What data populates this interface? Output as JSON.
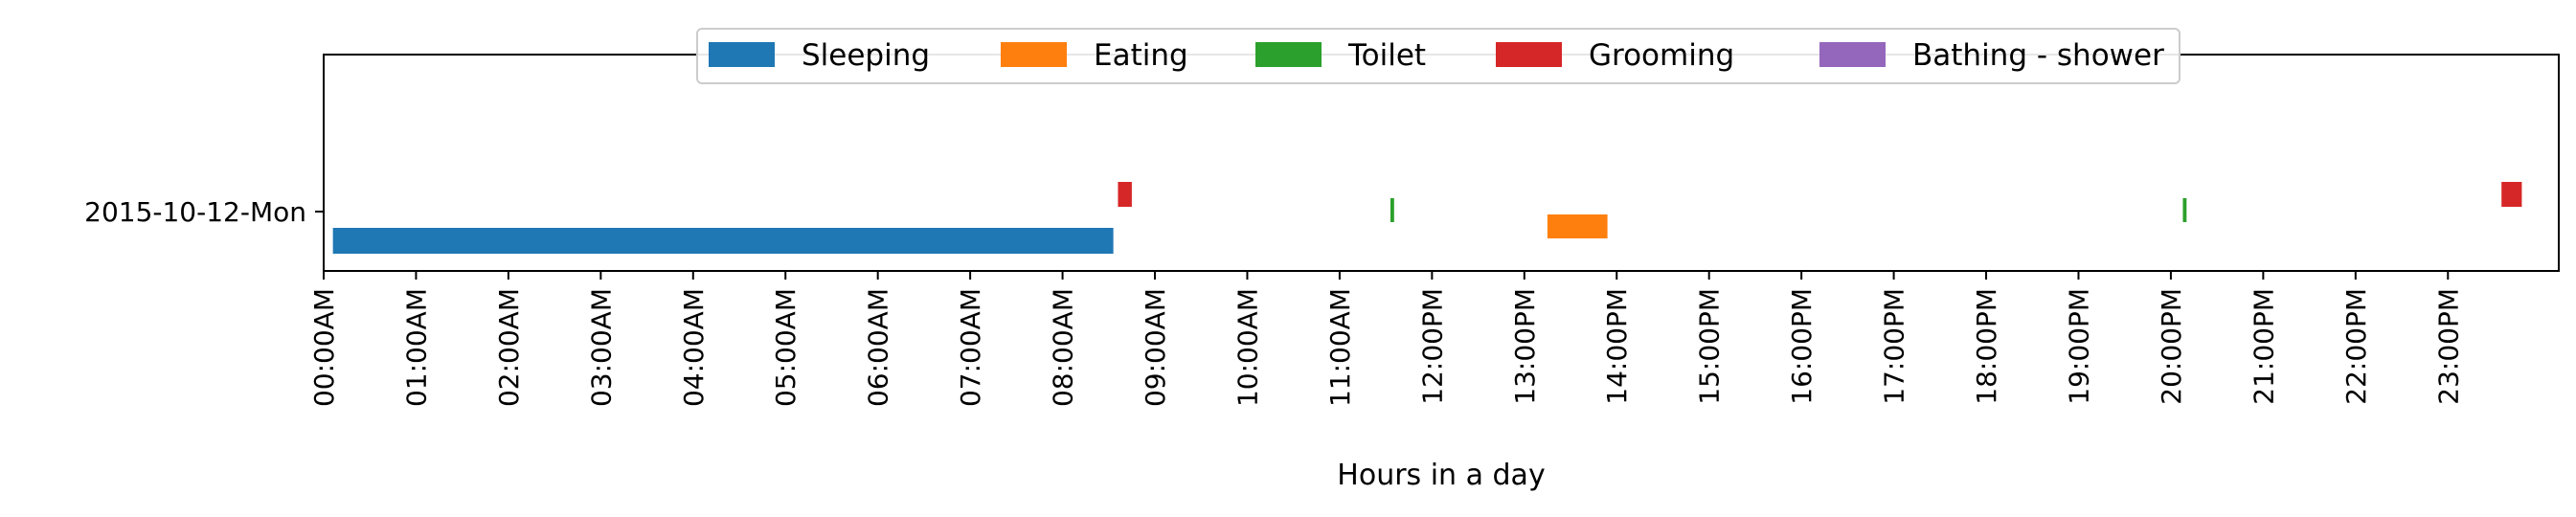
{
  "chart_data": {
    "type": "bar",
    "orientation": "horizontal-timeline",
    "title": "",
    "xlabel": "Hours in a day",
    "ylabel": "",
    "xlim": [
      0,
      24.2
    ],
    "x_ticks": [
      "00:00AM",
      "01:00AM",
      "02:00AM",
      "03:00AM",
      "04:00AM",
      "05:00AM",
      "06:00AM",
      "07:00AM",
      "08:00AM",
      "09:00AM",
      "10:00AM",
      "11:00AM",
      "12:00PM",
      "13:00PM",
      "14:00PM",
      "15:00PM",
      "16:00PM",
      "17:00PM",
      "18:00PM",
      "19:00PM",
      "20:00PM",
      "21:00PM",
      "22:00PM",
      "23:00PM"
    ],
    "categories": [
      "2015-10-12-Mon"
    ],
    "grid": false,
    "legend_placement": "top-center",
    "series": [
      {
        "name": "Sleeping",
        "color": "#1f77b4",
        "segments": [
          {
            "start": 0.1,
            "end": 8.55
          }
        ]
      },
      {
        "name": "Eating",
        "color": "#ff7f0e",
        "segments": [
          {
            "start": 13.25,
            "end": 13.9
          }
        ]
      },
      {
        "name": "Toilet",
        "color": "#2ca02c",
        "segments": [
          {
            "start": 11.55,
            "end": 11.59
          },
          {
            "start": 20.13,
            "end": 20.17
          }
        ]
      },
      {
        "name": "Grooming",
        "color": "#d62728",
        "segments": [
          {
            "start": 8.6,
            "end": 8.75
          },
          {
            "start": 23.58,
            "end": 23.8
          }
        ]
      },
      {
        "name": "Bathing - shower",
        "color": "#9467bd",
        "segments": []
      }
    ]
  }
}
